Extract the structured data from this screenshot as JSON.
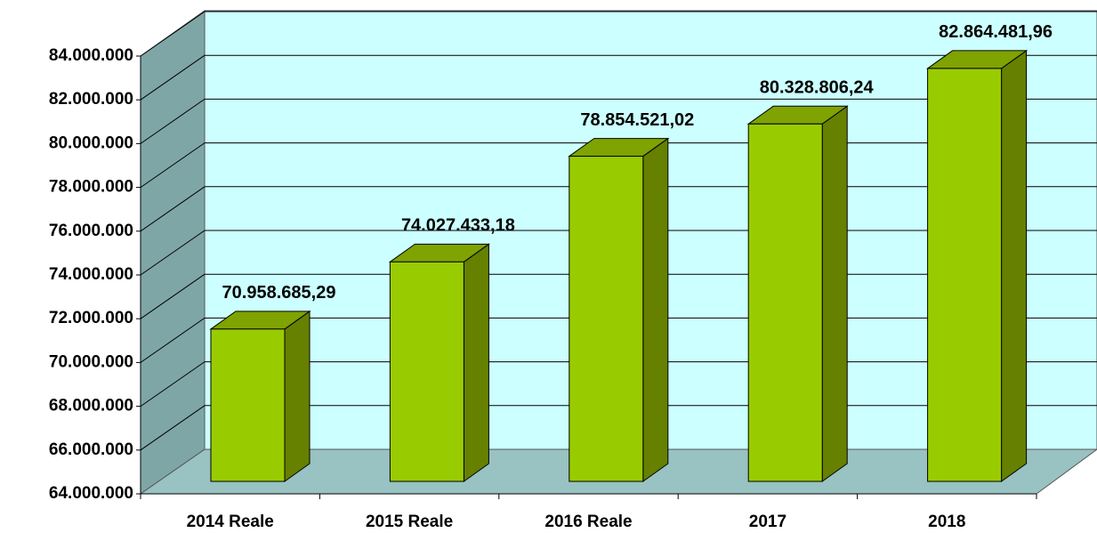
{
  "chart_data": {
    "type": "bar3d",
    "categories": [
      "2014 Reale",
      "2015 Reale",
      "2016 Reale",
      "2017",
      "2018"
    ],
    "values": [
      70958685.29,
      74027433.18,
      78854521.02,
      80328806.24,
      82864481.96
    ],
    "value_labels": [
      "70.958.685,29",
      "74.027.433,18",
      "78.854.521,02",
      "80.328.806,24",
      "82.864.481,96"
    ],
    "color": "#99cc00",
    "ylim": [
      64000000,
      84000000
    ],
    "yticks": [
      {
        "value": 64000000,
        "label": "64.000.000"
      },
      {
        "value": 66000000,
        "label": "66.000.000"
      },
      {
        "value": 68000000,
        "label": "68.000.000"
      },
      {
        "value": 70000000,
        "label": "70.000.000"
      },
      {
        "value": 72000000,
        "label": "72.000.000"
      },
      {
        "value": 74000000,
        "label": "74.000.000"
      },
      {
        "value": 76000000,
        "label": "76.000.000"
      },
      {
        "value": 78000000,
        "label": "78.000.000"
      },
      {
        "value": 80000000,
        "label": "80.000.000"
      },
      {
        "value": 82000000,
        "label": "82.000.000"
      },
      {
        "value": 84000000,
        "label": "84.000.000"
      }
    ],
    "grid": true
  }
}
